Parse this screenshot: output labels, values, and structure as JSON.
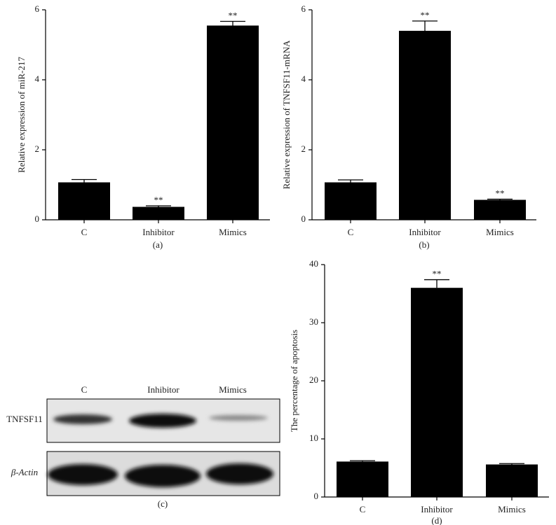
{
  "chart_data": [
    {
      "type": "bar",
      "ylabel": "Relative expression of miR-217",
      "caption": "(a)",
      "categories": [
        "C",
        "Inhibitor",
        "Mimics"
      ],
      "values": [
        1.07,
        0.37,
        5.55
      ],
      "errors": [
        0.08,
        0.03,
        0.12
      ],
      "annotations": [
        null,
        "**",
        "**"
      ],
      "color": "#000000",
      "ylim": [
        0,
        6
      ],
      "yticks": [
        0,
        2,
        4,
        6
      ]
    },
    {
      "type": "bar",
      "ylabel": "Relative expression of TNFSF11-mRNA",
      "caption": "(b)",
      "categories": [
        "C",
        "Inhibitor",
        "Mimics"
      ],
      "values": [
        1.07,
        5.4,
        0.57
      ],
      "errors": [
        0.07,
        0.28,
        0.02
      ],
      "annotations": [
        null,
        "**",
        "**"
      ],
      "color": "#000000",
      "ylim": [
        0,
        6
      ],
      "yticks": [
        0,
        2,
        4,
        6
      ]
    },
    {
      "type": "bar",
      "ylabel": "The percentage of apoptosis",
      "caption": "(d)",
      "categories": [
        "C",
        "Inhibitor",
        "Mimics"
      ],
      "values": [
        6.1,
        36,
        5.6
      ],
      "errors": [
        0.15,
        1.4,
        0.15
      ],
      "annotations": [
        null,
        "**",
        null
      ],
      "color": "#000000",
      "ylim": [
        0,
        40
      ],
      "yticks": [
        0,
        10,
        20,
        30,
        40
      ]
    }
  ],
  "blot": {
    "lanes": [
      "C",
      "Inhibitor",
      "Mimics"
    ],
    "rows": [
      "TNFSF11",
      "β-Actin"
    ],
    "caption": "(c)"
  }
}
